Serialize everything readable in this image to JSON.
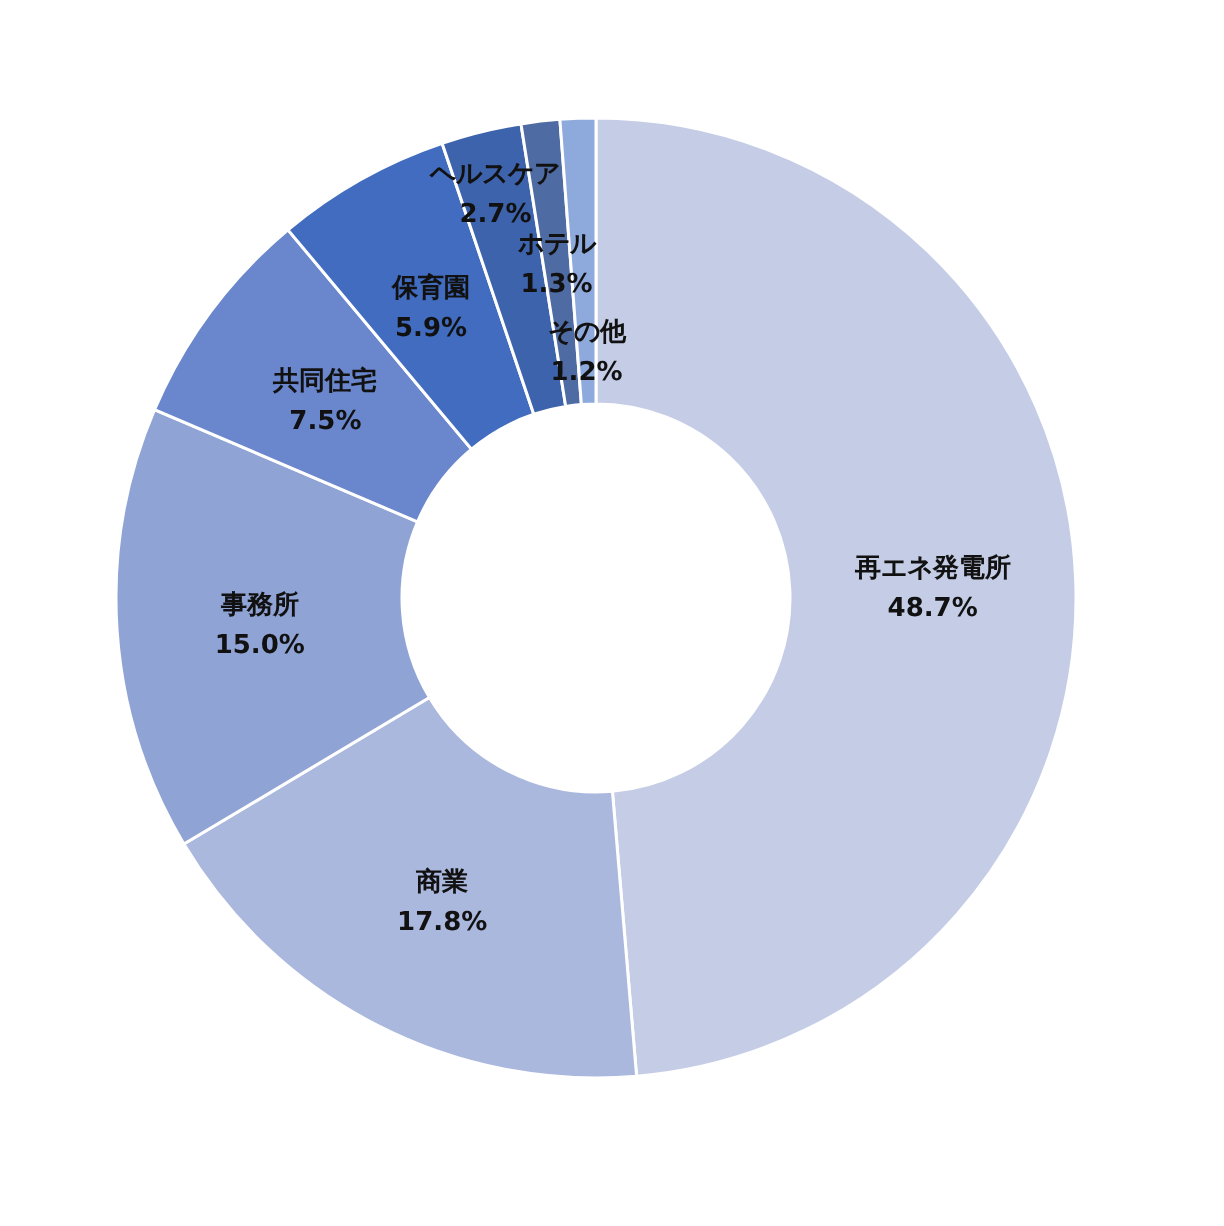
{
  "chart_data": {
    "type": "donut",
    "categories": [
      "再エネ発電所",
      "商業",
      "事務所",
      "共同住宅",
      "保育園",
      "ヘルスケア",
      "ホテル",
      "その他"
    ],
    "values": [
      48.7,
      17.8,
      15.0,
      7.5,
      5.9,
      2.7,
      1.3,
      1.2
    ],
    "value_labels": [
      "48.7%",
      "17.8%",
      "15.0%",
      "7.5%",
      "5.9%",
      "2.7%",
      "1.3%",
      "1.2%"
    ],
    "colors": [
      "#c5cde6",
      "#abb8de",
      "#8fa3d5",
      "#6a86cc",
      "#416cbf",
      "#3e63ad",
      "#4f6ba3",
      "#8eaadc"
    ]
  }
}
